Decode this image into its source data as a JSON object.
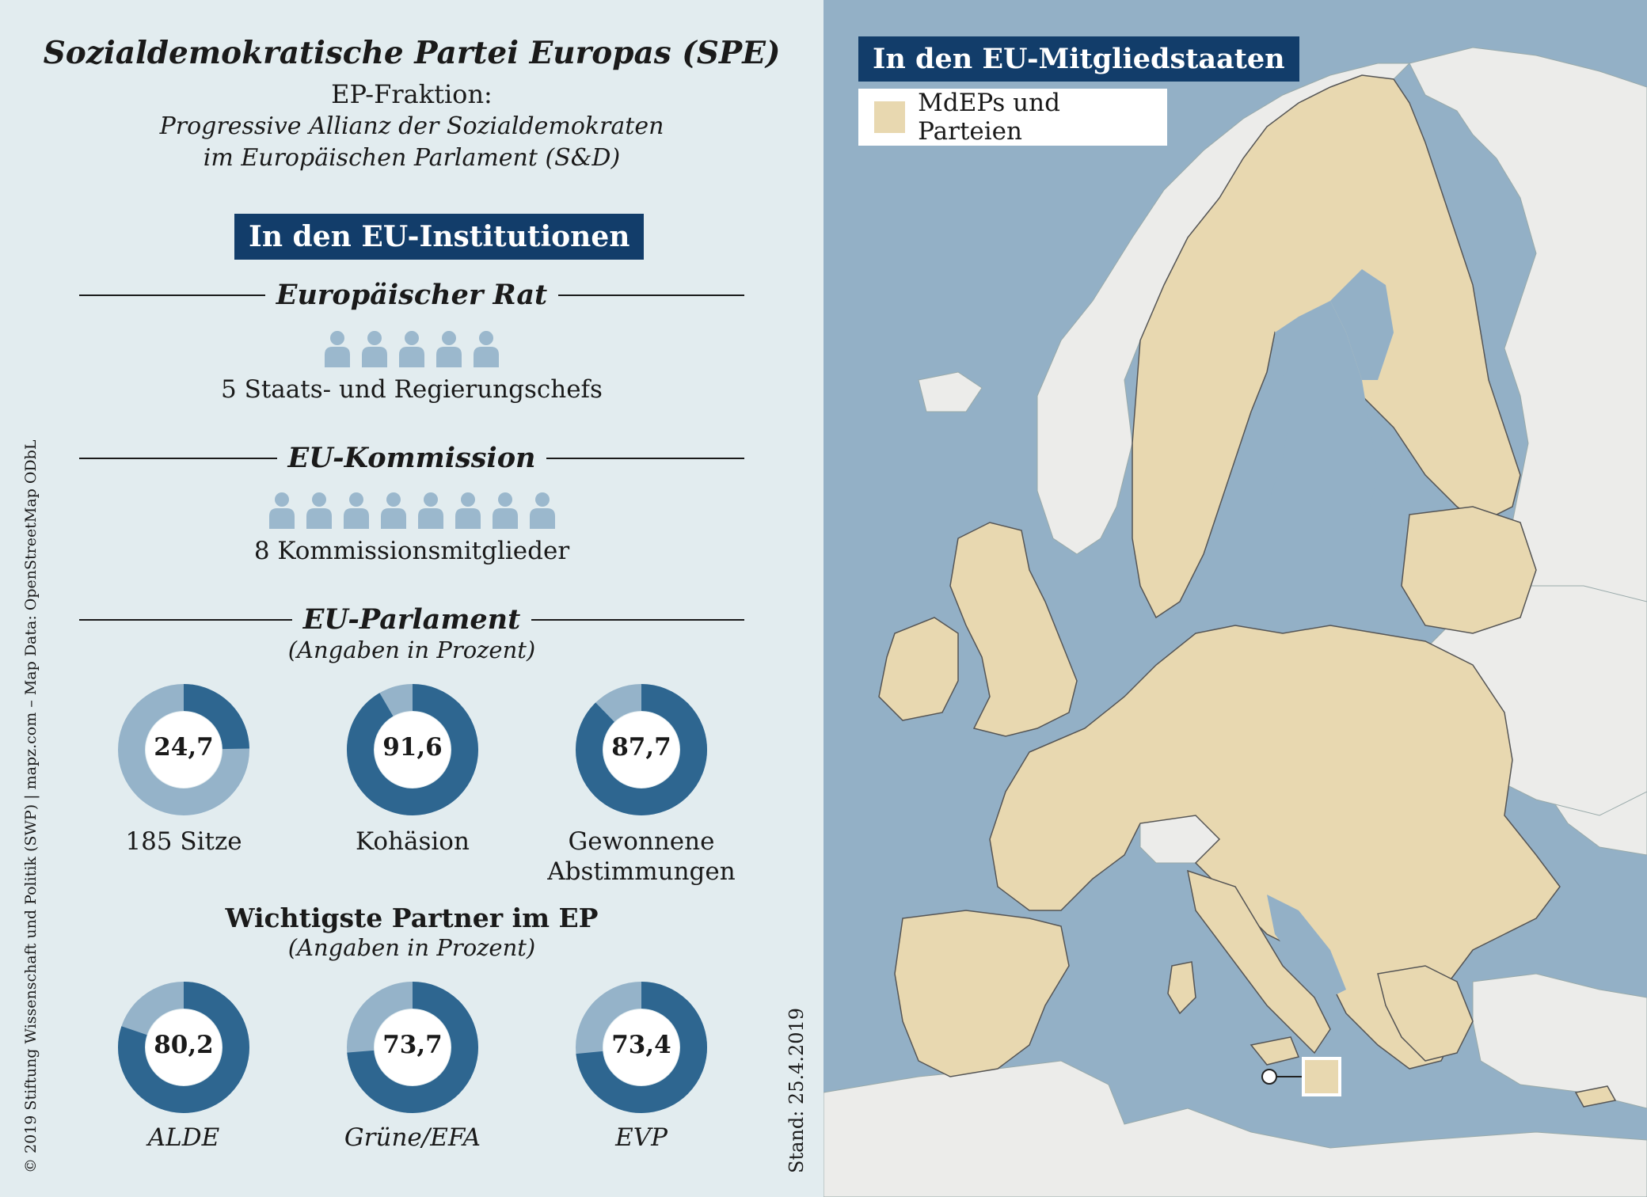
{
  "header": {
    "title": "Sozialdemokratische Partei Europas (SPE)",
    "subtitle": "EP-Fraktion:",
    "faction_line1": "Progressive Allianz der Sozialdemokraten",
    "faction_line2": "im Europäischen Parlament (S&D)"
  },
  "institutions": {
    "badge": "In den EU-Institutionen",
    "council": {
      "title": "Europäischer Rat",
      "count": 5,
      "caption": "5 Staats- und Regierungschefs"
    },
    "commission": {
      "title": "EU-Kommission",
      "count": 8,
      "caption": "8 Kommissionsmitglieder"
    },
    "parliament": {
      "title": "EU-Parlament",
      "note": "(Angaben in Prozent)",
      "donuts": [
        {
          "value": "24,7",
          "percent": 24.7,
          "label": "185 Sitze"
        },
        {
          "value": "91,6",
          "percent": 91.6,
          "label": "Kohäsion"
        },
        {
          "value": "87,7",
          "percent": 87.7,
          "label": "Gewonnene Abstimmungen"
        }
      ]
    },
    "partners": {
      "title": "Wichtigste Partner im EP",
      "note": "(Angaben in Prozent)",
      "donuts": [
        {
          "value": "80,2",
          "percent": 80.2,
          "label": "ALDE"
        },
        {
          "value": "73,7",
          "percent": 73.7,
          "label": "Grüne/EFA"
        },
        {
          "value": "73,4",
          "percent": 73.4,
          "label": "EVP"
        }
      ]
    }
  },
  "map": {
    "badge": "In den EU-Mitgliedstaaten",
    "legend_label": "MdEPs und Parteien"
  },
  "footer": {
    "copyright": "© 2019 Stiftung Wissenschaft und Politik (SWP) | mapz.com – Map Data: OpenStreetMap ODbL",
    "stand": "Stand: 25.4.2019"
  },
  "colors": {
    "badge": "#123d6a",
    "donut_dark": "#2e6690",
    "donut_light": "#95b3c9",
    "person": "#9bb8cd",
    "sea": "#93b0c6",
    "member_state": "#e8d8b0",
    "non_member": "#ececea"
  }
}
